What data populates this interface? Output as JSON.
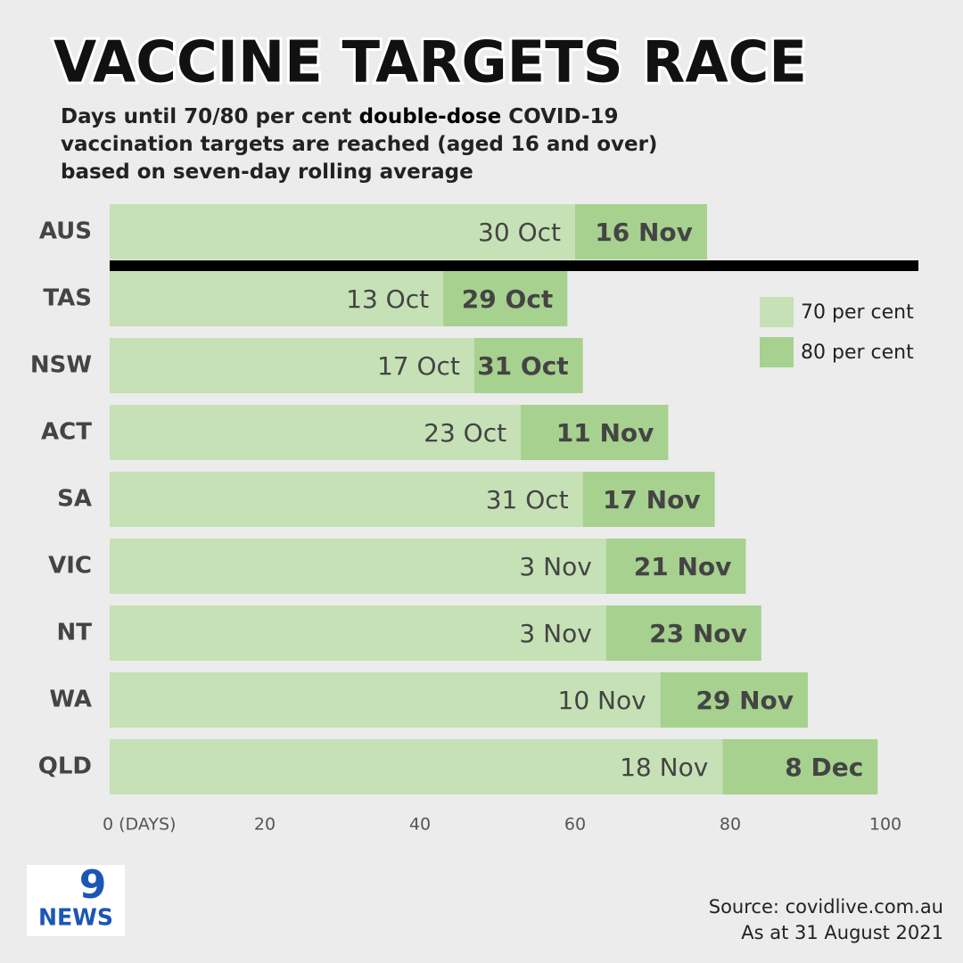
{
  "chart_data": {
    "type": "stacked_barh",
    "title": "VACCINE TARGETS RACE",
    "subtitle": [
      "Days until 70/80 per cent",
      "double-dose",
      "COVID-19",
      "vaccination targets are reached (aged 16 and over)",
      "based on seven-day rolling average"
    ],
    "categories": [
      "AUS",
      "TAS",
      "NSW",
      "ACT",
      "SA",
      "VIC",
      "NT",
      "WA",
      "QLD"
    ],
    "series": [
      {
        "name": "70 per cent",
        "color": "#c6e1b6",
        "values": [
          60,
          43,
          47,
          53,
          61,
          64,
          64,
          71,
          79
        ],
        "value_labels": [
          "30 Oct",
          "13 Oct",
          "17 Oct",
          "23 Oct",
          "31 Oct",
          "3 Nov",
          "3 Nov",
          "10 Nov",
          "18 Nov"
        ]
      },
      {
        "name": "80 per cent",
        "color": "#a7d18f",
        "values": [
          17,
          16,
          14,
          19,
          17,
          18,
          20,
          19,
          20
        ],
        "value_labels": [
          "16 Nov",
          "29 Oct",
          "31 Oct",
          "11 Nov",
          "17 Nov",
          "21 Nov",
          "23 Nov",
          "29 Nov",
          "8 Dec"
        ]
      }
    ],
    "xlim": [
      0,
      100
    ],
    "xticks": [
      {
        "value": 0,
        "label": "0 (DAYS)"
      },
      20,
      40,
      60,
      80,
      100
    ],
    "legend": "upper right",
    "source": "Source: covidlive.com.au",
    "date_note": "As at 31 August 2021",
    "logo": {
      "mark": "9",
      "text": "NEWS"
    }
  }
}
